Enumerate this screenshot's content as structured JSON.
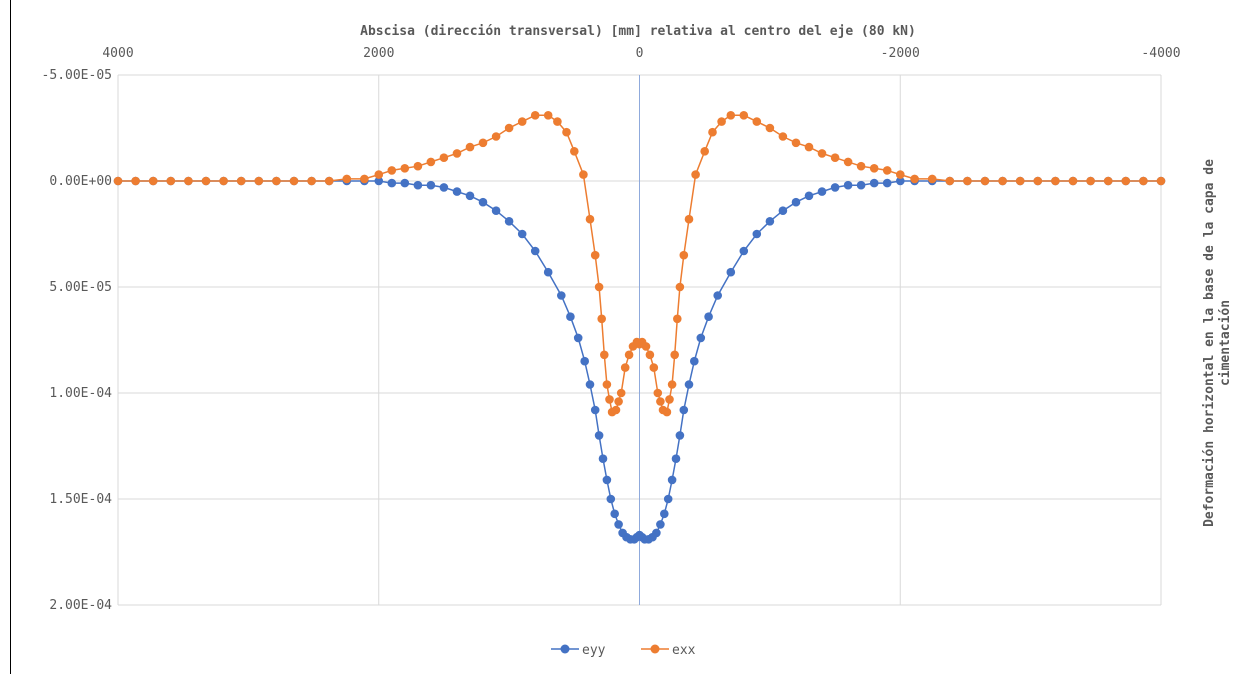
{
  "colors": {
    "eyy": "#4472C4",
    "exx": "#ED7D31",
    "grid": "#D9D9D9",
    "zero_line": "#8FAADC",
    "text": "#595959"
  },
  "chart_data": {
    "type": "scatter",
    "title": "",
    "xlabel": "Abscisa (dirección transversal) [mm] relativa al centro del eje (80 kN)",
    "ylabel": "Deformación horizontal en la base de la capa de cimentación",
    "ylabel_lines": [
      "Deformación horizontal en la base de la capa de",
      "cimentación"
    ],
    "x_axis_position": "top",
    "y_axis_position": "left",
    "x_reversed": true,
    "y_reversed": true,
    "xlim": [
      4000,
      -4000
    ],
    "ylim": [
      -5e-05,
      0.0002
    ],
    "x_ticks": [
      4000,
      2000,
      0,
      -2000,
      -4000
    ],
    "x_tick_labels": [
      "4000",
      "2000",
      "0",
      "-2000",
      "-4000"
    ],
    "y_ticks": [
      -5e-05,
      0,
      5e-05,
      0.0001,
      0.00015,
      0.0002
    ],
    "y_tick_labels": [
      "-5.00E-05",
      "0.00E+00",
      "5.00E-05",
      "1.00E-04",
      "1.50E-04",
      "2.00E-04"
    ],
    "grid": true,
    "legend_position": "bottom",
    "legend": [
      "eyy",
      "exx"
    ],
    "series": [
      {
        "name": "eyy",
        "color": "#4472C4",
        "points": [
          [
            -4000,
            0
          ],
          [
            -3865,
            0
          ],
          [
            -3730,
            0
          ],
          [
            -3595,
            0
          ],
          [
            -3460,
            0
          ],
          [
            -3325,
            0
          ],
          [
            -3190,
            0
          ],
          [
            -3055,
            0
          ],
          [
            -2920,
            0
          ],
          [
            -2785,
            0
          ],
          [
            -2650,
            0
          ],
          [
            -2515,
            0
          ],
          [
            -2380,
            0
          ],
          [
            -2245,
            0
          ],
          [
            -2110,
            0
          ],
          [
            -2000,
            0
          ],
          [
            -1900,
            1e-06
          ],
          [
            -1800,
            1e-06
          ],
          [
            -1700,
            2e-06
          ],
          [
            -1600,
            2e-06
          ],
          [
            -1500,
            3e-06
          ],
          [
            -1400,
            5e-06
          ],
          [
            -1300,
            7e-06
          ],
          [
            -1200,
            1e-05
          ],
          [
            -1100,
            1.4e-05
          ],
          [
            -1000,
            1.9e-05
          ],
          [
            -900,
            2.5e-05
          ],
          [
            -800,
            3.3e-05
          ],
          [
            -700,
            4.3e-05
          ],
          [
            -600,
            5.4e-05
          ],
          [
            -530,
            6.4e-05
          ],
          [
            -470,
            7.4e-05
          ],
          [
            -420,
            8.5e-05
          ],
          [
            -380,
            9.6e-05
          ],
          [
            -340,
            0.000108
          ],
          [
            -310,
            0.00012
          ],
          [
            -280,
            0.000131
          ],
          [
            -250,
            0.000141
          ],
          [
            -220,
            0.00015
          ],
          [
            -190,
            0.000157
          ],
          [
            -160,
            0.000162
          ],
          [
            -130,
            0.000166
          ],
          [
            -100,
            0.000168
          ],
          [
            -70,
            0.000169
          ],
          [
            -40,
            0.000169
          ],
          [
            -20,
            0.000168
          ],
          [
            0,
            0.000167
          ],
          [
            20,
            0.000168
          ],
          [
            40,
            0.000169
          ],
          [
            70,
            0.000169
          ],
          [
            100,
            0.000168
          ],
          [
            130,
            0.000166
          ],
          [
            160,
            0.000162
          ],
          [
            190,
            0.000157
          ],
          [
            220,
            0.00015
          ],
          [
            250,
            0.000141
          ],
          [
            280,
            0.000131
          ],
          [
            310,
            0.00012
          ],
          [
            340,
            0.000108
          ],
          [
            380,
            9.6e-05
          ],
          [
            420,
            8.5e-05
          ],
          [
            470,
            7.4e-05
          ],
          [
            530,
            6.4e-05
          ],
          [
            600,
            5.4e-05
          ],
          [
            700,
            4.3e-05
          ],
          [
            800,
            3.3e-05
          ],
          [
            900,
            2.5e-05
          ],
          [
            1000,
            1.9e-05
          ],
          [
            1100,
            1.4e-05
          ],
          [
            1200,
            1e-05
          ],
          [
            1300,
            7e-06
          ],
          [
            1400,
            5e-06
          ],
          [
            1500,
            3e-06
          ],
          [
            1600,
            2e-06
          ],
          [
            1700,
            2e-06
          ],
          [
            1800,
            1e-06
          ],
          [
            1900,
            1e-06
          ],
          [
            2000,
            0
          ],
          [
            2110,
            0
          ],
          [
            2245,
            0
          ],
          [
            2380,
            0
          ],
          [
            2515,
            0
          ],
          [
            2650,
            0
          ],
          [
            2785,
            0
          ],
          [
            2920,
            0
          ],
          [
            3055,
            0
          ],
          [
            3190,
            0
          ],
          [
            3325,
            0
          ],
          [
            3460,
            0
          ],
          [
            3595,
            0
          ],
          [
            3730,
            0
          ],
          [
            3865,
            0
          ],
          [
            4000,
            0
          ]
        ]
      },
      {
        "name": "exx",
        "color": "#ED7D31",
        "points": [
          [
            -4000,
            0
          ],
          [
            -3865,
            0
          ],
          [
            -3730,
            0
          ],
          [
            -3595,
            0
          ],
          [
            -3460,
            0
          ],
          [
            -3325,
            0
          ],
          [
            -3190,
            0
          ],
          [
            -3055,
            0
          ],
          [
            -2920,
            0
          ],
          [
            -2785,
            0
          ],
          [
            -2650,
            0
          ],
          [
            -2515,
            0
          ],
          [
            -2380,
            0
          ],
          [
            -2245,
            -1e-06
          ],
          [
            -2110,
            -1e-06
          ],
          [
            -2000,
            -3e-06
          ],
          [
            -1900,
            -5e-06
          ],
          [
            -1800,
            -6e-06
          ],
          [
            -1700,
            -7e-06
          ],
          [
            -1600,
            -9e-06
          ],
          [
            -1500,
            -1.1e-05
          ],
          [
            -1400,
            -1.3e-05
          ],
          [
            -1300,
            -1.6e-05
          ],
          [
            -1200,
            -1.8e-05
          ],
          [
            -1100,
            -2.1e-05
          ],
          [
            -1000,
            -2.5e-05
          ],
          [
            -900,
            -2.8e-05
          ],
          [
            -800,
            -3.1e-05
          ],
          [
            -700,
            -3.1e-05
          ],
          [
            -630,
            -2.8e-05
          ],
          [
            -560,
            -2.3e-05
          ],
          [
            -500,
            -1.4e-05
          ],
          [
            -430,
            -3e-06
          ],
          [
            -380,
            1.8e-05
          ],
          [
            -340,
            3.5e-05
          ],
          [
            -310,
            5e-05
          ],
          [
            -290,
            6.5e-05
          ],
          [
            -270,
            8.2e-05
          ],
          [
            -250,
            9.6e-05
          ],
          [
            -230,
            0.000103
          ],
          [
            -210,
            0.000109
          ],
          [
            -180,
            0.000108
          ],
          [
            -160,
            0.000104
          ],
          [
            -140,
            0.0001
          ],
          [
            -110,
            8.8e-05
          ],
          [
            -80,
            8.2e-05
          ],
          [
            -50,
            7.8e-05
          ],
          [
            -20,
            7.6e-05
          ],
          [
            0,
            7.7e-05
          ],
          [
            20,
            7.6e-05
          ],
          [
            50,
            7.8e-05
          ],
          [
            80,
            8.2e-05
          ],
          [
            110,
            8.8e-05
          ],
          [
            140,
            0.0001
          ],
          [
            160,
            0.000104
          ],
          [
            180,
            0.000108
          ],
          [
            210,
            0.000109
          ],
          [
            230,
            0.000103
          ],
          [
            250,
            9.6e-05
          ],
          [
            270,
            8.2e-05
          ],
          [
            290,
            6.5e-05
          ],
          [
            310,
            5e-05
          ],
          [
            340,
            3.5e-05
          ],
          [
            380,
            1.8e-05
          ],
          [
            430,
            -3e-06
          ],
          [
            500,
            -1.4e-05
          ],
          [
            560,
            -2.3e-05
          ],
          [
            630,
            -2.8e-05
          ],
          [
            700,
            -3.1e-05
          ],
          [
            800,
            -3.1e-05
          ],
          [
            900,
            -2.8e-05
          ],
          [
            1000,
            -2.5e-05
          ],
          [
            1100,
            -2.1e-05
          ],
          [
            1200,
            -1.8e-05
          ],
          [
            1300,
            -1.6e-05
          ],
          [
            1400,
            -1.3e-05
          ],
          [
            1500,
            -1.1e-05
          ],
          [
            1600,
            -9e-06
          ],
          [
            1700,
            -7e-06
          ],
          [
            1800,
            -6e-06
          ],
          [
            1900,
            -5e-06
          ],
          [
            2000,
            -3e-06
          ],
          [
            2110,
            -1e-06
          ],
          [
            2245,
            -1e-06
          ],
          [
            2380,
            0
          ],
          [
            2515,
            0
          ],
          [
            2650,
            0
          ],
          [
            2785,
            0
          ],
          [
            2920,
            0
          ],
          [
            3055,
            0
          ],
          [
            3190,
            0
          ],
          [
            3325,
            0
          ],
          [
            3460,
            0
          ],
          [
            3595,
            0
          ],
          [
            3730,
            0
          ],
          [
            3865,
            0
          ],
          [
            4000,
            0
          ]
        ]
      }
    ]
  }
}
